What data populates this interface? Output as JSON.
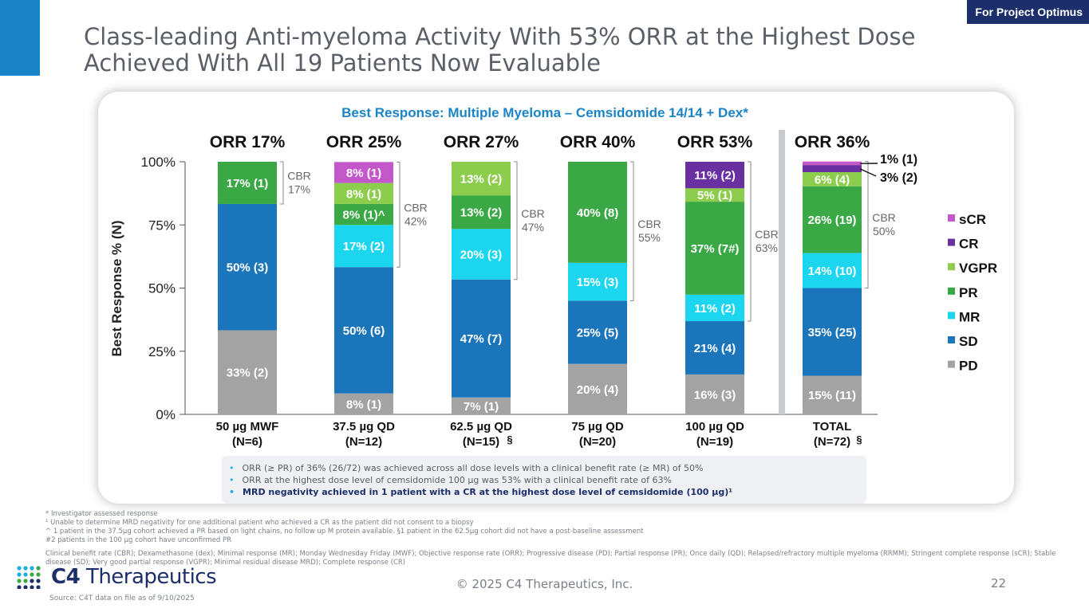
{
  "slide": {
    "title_line1": "Class-leading Anti-myeloma Activity With 53% ORR at the Highest Dose",
    "title_line2": "Achieved With All 19 Patients Now Evaluable",
    "tag": "For Project Optimus",
    "copyright": "© 2025 C4 Therapeutics, Inc.",
    "page_number": "22",
    "source": "Source: C4T data on file as of 9/10/2025",
    "logo_bold": "C4",
    "logo_text": " Therapeutics"
  },
  "colors": {
    "accent": "#1b84c6",
    "tag_bg": "#1c2f6a",
    "sCR": "#c457c9",
    "CR": "#6a2fa0",
    "VGPR": "#8ccd4e",
    "PR": "#3ba846",
    "MR": "#1cd6ef",
    "SD": "#1b75bb",
    "PD": "#a3a3a3"
  },
  "chart_data": {
    "type": "bar",
    "stacked": true,
    "title": "Best Response: Multiple Myeloma – Cemsidomide 14/14 + Dex*",
    "ylabel": "Best Response % (N)",
    "ylim": [
      0,
      100
    ],
    "yticks": [
      "0%",
      "25%",
      "50%",
      "75%",
      "100%"
    ],
    "ytick_values": [
      0,
      25,
      50,
      75,
      100
    ],
    "categories": [
      {
        "line1": "50 µg MWF",
        "line2": "(N=6)",
        "mark": ""
      },
      {
        "line1": "37.5 µg QD",
        "line2": "(N=12)",
        "mark": ""
      },
      {
        "line1": "62.5 µg QD",
        "line2": "(N=15)",
        "mark": "§"
      },
      {
        "line1": "75 µg QD",
        "line2": "(N=20)",
        "mark": ""
      },
      {
        "line1": "100 µg QD",
        "line2": "(N=19)",
        "mark": ""
      },
      {
        "line1": "TOTAL",
        "line2": "(N=72)",
        "mark": "§"
      }
    ],
    "orr": [
      "ORR 17%",
      "ORR 25%",
      "ORR 27%",
      "ORR 40%",
      "ORR 53%",
      "ORR 36%"
    ],
    "cbr": [
      {
        "label": "CBR",
        "value": "17%"
      },
      {
        "label": "CBR",
        "value": "42%"
      },
      {
        "label": "CBR",
        "value": "47%"
      },
      {
        "label": "CBR",
        "value": "55%"
      },
      {
        "label": "CBR",
        "value": "63%"
      },
      {
        "label": "CBR",
        "value": "50%"
      }
    ],
    "series_order": [
      "PD",
      "SD",
      "MR",
      "PR",
      "VGPR",
      "CR",
      "sCR"
    ],
    "legend_order": [
      "sCR",
      "CR",
      "VGPR",
      "PR",
      "MR",
      "SD",
      "PD"
    ],
    "bars": [
      [
        {
          "series": "PD",
          "value": 33.3,
          "label": "33% (2)"
        },
        {
          "series": "SD",
          "value": 50,
          "label": "50% (3)"
        },
        {
          "series": "PR",
          "value": 16.7,
          "label": "17% (1)"
        }
      ],
      [
        {
          "series": "PD",
          "value": 8.3,
          "label": "8% (1)"
        },
        {
          "series": "SD",
          "value": 50,
          "label": "50% (6)"
        },
        {
          "series": "MR",
          "value": 16.7,
          "label": "17% (2)"
        },
        {
          "series": "PR",
          "value": 8.3,
          "label": "8% (1)^"
        },
        {
          "series": "VGPR",
          "value": 8.3,
          "label": "8% (1)"
        },
        {
          "series": "sCR",
          "value": 8.3,
          "label": "8% (1)"
        }
      ],
      [
        {
          "series": "PD",
          "value": 6.7,
          "label": "7% (1)"
        },
        {
          "series": "SD",
          "value": 46.7,
          "label": "47% (7)"
        },
        {
          "series": "MR",
          "value": 20,
          "label": "20% (3)"
        },
        {
          "series": "PR",
          "value": 13.3,
          "label": "13% (2)"
        },
        {
          "series": "VGPR",
          "value": 13.3,
          "label": "13% (2)"
        }
      ],
      [
        {
          "series": "PD",
          "value": 20,
          "label": "20% (4)"
        },
        {
          "series": "SD",
          "value": 25,
          "label": "25% (5)"
        },
        {
          "series": "MR",
          "value": 15,
          "label": "15% (3)"
        },
        {
          "series": "PR",
          "value": 40,
          "label": "40% (8)"
        }
      ],
      [
        {
          "series": "PD",
          "value": 15.8,
          "label": "16% (3)"
        },
        {
          "series": "SD",
          "value": 21.1,
          "label": "21% (4)"
        },
        {
          "series": "MR",
          "value": 10.5,
          "label": "11% (2)"
        },
        {
          "series": "PR",
          "value": 36.8,
          "label": "37% (7#)"
        },
        {
          "series": "VGPR",
          "value": 5.3,
          "label": "5% (1)"
        },
        {
          "series": "CR",
          "value": 10.5,
          "label": "11% (2)"
        }
      ],
      [
        {
          "series": "PD",
          "value": 15.3,
          "label": "15% (11)"
        },
        {
          "series": "SD",
          "value": 34.7,
          "label": "35% (25)"
        },
        {
          "series": "MR",
          "value": 13.9,
          "label": "14% (10)"
        },
        {
          "series": "PR",
          "value": 26.4,
          "label": "26% (19)"
        },
        {
          "series": "VGPR",
          "value": 5.6,
          "label": "6% (4)"
        },
        {
          "series": "CR",
          "value": 2.8,
          "label": ""
        },
        {
          "series": "sCR",
          "value": 1.4,
          "label": ""
        }
      ]
    ],
    "callouts": [
      "1% (1)",
      "3% (2)"
    ]
  },
  "bullets": [
    "ORR (≥ PR) of 36% (26/72) was achieved across all dose levels with a clinical benefit rate (≥ MR) of 50%",
    "ORR at the highest dose level of cemsidomide 100 µg was 53% with a clinical benefit rate of 63%",
    "MRD negativity achieved in 1 patient with a CR at the highest dose level of cemsidomide (100 µg)¹"
  ],
  "footnotes": [
    "* Investigator assessed response",
    "¹ Unable to determine MRD negativity for one additional patient who achieved a CR as the patient did not consent to a biopsy",
    "^ 1 patient in the 37.5µg cohort achieved a PR based on light chains, no follow up M protein available. §1 patient in the 62.5µg cohort did not have a post-baseline assessment",
    "#2 patients in the 100 µg cohort have unconfirmed PR",
    "Clinical benefit rate (CBR); Dexamethasone (dex); Minimal response (MR); Monday Wednesday Friday (MWF); Objective response rate (ORR); Progressive disease (PD); Partial response (PR); Once daily (QD); Relapsed/refractory multiple myeloma (RRMM); Stringent complete response (sCR); Stable disease (SD); Very good partial response (VGPR); Minimal residual disease MRD); Complete response (CR)"
  ]
}
